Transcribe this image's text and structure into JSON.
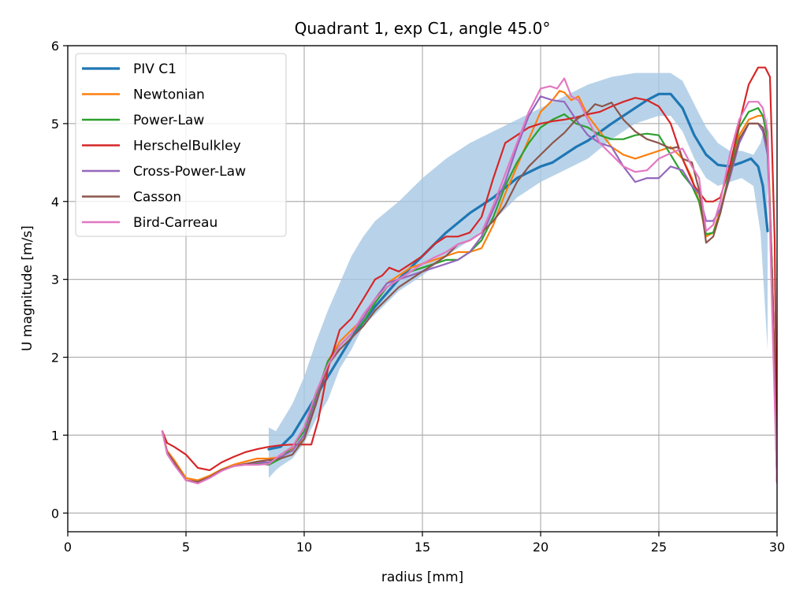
{
  "chart_data": {
    "type": "line",
    "title": "Quadrant 1, exp C1, angle 45.0°",
    "xlabel": "radius [mm]",
    "ylabel": "U magnitude [m/s]",
    "xlim": [
      0,
      30
    ],
    "ylim": [
      -0.24,
      6
    ],
    "xticks": [
      0,
      5,
      10,
      15,
      20,
      25,
      30
    ],
    "yticks": [
      0,
      1,
      2,
      3,
      4,
      5,
      6
    ],
    "xtick_labels": [
      "0",
      "5",
      "10",
      "15",
      "20",
      "25",
      "30"
    ],
    "ytick_labels": [
      "0",
      "1",
      "2",
      "3",
      "4",
      "5",
      "6"
    ],
    "grid": true,
    "legend_position": "top-left",
    "band": {
      "name": "PIV C1 spread",
      "color": "#a6c8e3",
      "x": [
        8.5,
        8.8,
        9.0,
        9.5,
        10.0,
        10.5,
        11.0,
        11.5,
        12.0,
        12.5,
        13.0,
        14.0,
        15.0,
        16.0,
        17.0,
        18.0,
        19.0,
        20.0,
        21.0,
        22.0,
        23.0,
        24.0,
        25.0,
        25.5,
        26.0,
        26.5,
        27.0,
        27.5,
        28.0,
        28.5,
        29.0,
        29.3,
        29.6
      ],
      "lower": [
        0.45,
        0.55,
        0.6,
        0.7,
        0.9,
        1.2,
        1.45,
        1.85,
        2.1,
        2.4,
        2.55,
        2.85,
        3.05,
        3.3,
        3.5,
        3.75,
        4.05,
        4.25,
        4.4,
        4.55,
        4.8,
        5.0,
        5.1,
        5.1,
        4.9,
        4.55,
        4.3,
        4.2,
        4.25,
        4.3,
        4.2,
        3.6,
        2.1
      ],
      "upper": [
        1.1,
        1.05,
        1.15,
        1.4,
        1.75,
        2.2,
        2.6,
        2.95,
        3.3,
        3.55,
        3.75,
        4.0,
        4.3,
        4.55,
        4.75,
        4.9,
        5.05,
        5.2,
        5.35,
        5.5,
        5.6,
        5.65,
        5.65,
        5.65,
        5.55,
        5.25,
        4.95,
        4.75,
        4.65,
        4.65,
        4.6,
        4.75,
        5.1
      ]
    },
    "series": [
      {
        "name": "PIV C1",
        "color": "#1f77b4",
        "width": 3.2,
        "x": [
          8.5,
          9.0,
          9.5,
          10.0,
          10.5,
          11.0,
          12.0,
          13.0,
          14.0,
          15.0,
          16.0,
          17.0,
          18.0,
          19.0,
          20.0,
          20.5,
          21.0,
          21.5,
          22.0,
          23.0,
          24.0,
          24.5,
          25.0,
          25.5,
          26.0,
          26.5,
          27.0,
          27.5,
          28.0,
          28.5,
          28.9,
          29.2,
          29.4,
          29.6
        ],
        "y": [
          0.82,
          0.85,
          1.0,
          1.25,
          1.5,
          1.75,
          2.25,
          2.65,
          3.0,
          3.3,
          3.6,
          3.85,
          4.05,
          4.3,
          4.45,
          4.5,
          4.6,
          4.7,
          4.78,
          5.0,
          5.2,
          5.3,
          5.38,
          5.38,
          5.2,
          4.85,
          4.6,
          4.47,
          4.45,
          4.5,
          4.55,
          4.45,
          4.2,
          3.62
        ]
      },
      {
        "name": "Newtonian",
        "color": "#ff7f0e",
        "width": 2.2,
        "x": [
          4.0,
          4.2,
          4.5,
          5.0,
          5.5,
          6.0,
          6.5,
          7.0,
          7.5,
          8.0,
          8.5,
          9.0,
          9.5,
          10.0,
          10.5,
          11.0,
          11.5,
          12.0,
          12.5,
          13.0,
          13.5,
          14.0,
          14.5,
          15.0,
          15.5,
          16.0,
          16.5,
          17.0,
          17.5,
          18.0,
          18.5,
          19.0,
          19.5,
          20.0,
          20.5,
          20.8,
          21.0,
          21.3,
          21.6,
          22.0,
          22.5,
          23.0,
          23.5,
          24.0,
          24.5,
          25.0,
          25.5,
          26.0,
          26.4,
          26.7,
          27.0,
          27.3,
          27.6,
          28.0,
          28.4,
          28.8,
          29.2,
          29.4,
          29.6,
          29.8,
          30.0
        ],
        "y": [
          1.05,
          0.8,
          0.68,
          0.45,
          0.42,
          0.48,
          0.56,
          0.62,
          0.66,
          0.7,
          0.7,
          0.72,
          0.82,
          0.95,
          1.4,
          1.95,
          2.2,
          2.35,
          2.5,
          2.75,
          2.95,
          3.05,
          3.15,
          3.2,
          3.25,
          3.3,
          3.35,
          3.35,
          3.4,
          3.7,
          4.1,
          4.45,
          4.8,
          5.15,
          5.3,
          5.42,
          5.4,
          5.3,
          5.35,
          5.1,
          4.9,
          4.7,
          4.6,
          4.55,
          4.6,
          4.65,
          4.7,
          4.55,
          4.3,
          4.0,
          3.55,
          3.6,
          3.9,
          4.35,
          4.85,
          5.05,
          5.1,
          5.1,
          4.9,
          3.0,
          0.4
        ]
      },
      {
        "name": "Power-Law",
        "color": "#2ca02c",
        "width": 2.2,
        "x": [
          4.0,
          4.2,
          4.5,
          5.0,
          5.5,
          6.0,
          6.5,
          7.0,
          7.5,
          8.0,
          8.5,
          9.0,
          9.5,
          10.0,
          10.5,
          11.0,
          11.5,
          12.0,
          12.5,
          13.0,
          13.5,
          14.0,
          14.5,
          15.0,
          15.5,
          16.0,
          16.5,
          17.0,
          17.5,
          18.0,
          18.5,
          19.0,
          19.5,
          20.0,
          20.5,
          21.0,
          21.5,
          22.0,
          22.5,
          23.0,
          23.5,
          24.0,
          24.5,
          25.0,
          25.5,
          26.0,
          26.4,
          26.7,
          27.0,
          27.3,
          27.6,
          28.0,
          28.4,
          28.8,
          29.2,
          29.4,
          29.6,
          29.8,
          30.0
        ],
        "y": [
          1.05,
          0.78,
          0.65,
          0.42,
          0.4,
          0.46,
          0.55,
          0.6,
          0.63,
          0.64,
          0.62,
          0.7,
          0.85,
          1.05,
          1.5,
          1.95,
          2.15,
          2.3,
          2.45,
          2.7,
          2.9,
          3.0,
          3.1,
          3.15,
          3.2,
          3.25,
          3.25,
          3.35,
          3.5,
          3.8,
          4.2,
          4.5,
          4.75,
          4.95,
          5.05,
          5.12,
          5.0,
          4.95,
          4.85,
          4.8,
          4.8,
          4.85,
          4.87,
          4.85,
          4.6,
          4.35,
          4.2,
          4.0,
          3.58,
          3.6,
          3.85,
          4.4,
          4.95,
          5.15,
          5.2,
          5.1,
          4.8,
          3.0,
          0.4
        ]
      },
      {
        "name": "HerschelBulkley",
        "color": "#d62728",
        "width": 2.2,
        "x": [
          4.0,
          4.2,
          4.5,
          5.0,
          5.5,
          6.0,
          6.5,
          7.0,
          7.5,
          8.0,
          8.5,
          9.0,
          9.5,
          10.0,
          10.3,
          10.6,
          11.0,
          11.5,
          12.0,
          12.5,
          13.0,
          13.3,
          13.6,
          14.0,
          14.5,
          15.0,
          15.5,
          16.0,
          16.5,
          17.0,
          17.5,
          18.0,
          18.5,
          19.0,
          19.5,
          20.0,
          20.5,
          21.0,
          21.5,
          22.0,
          22.5,
          23.0,
          23.5,
          24.0,
          24.5,
          25.0,
          25.5,
          26.0,
          26.5,
          27.0,
          27.3,
          27.6,
          28.0,
          28.4,
          28.8,
          29.2,
          29.5,
          29.7,
          29.9,
          30.0
        ],
        "y": [
          1.05,
          0.9,
          0.85,
          0.75,
          0.58,
          0.55,
          0.65,
          0.72,
          0.78,
          0.82,
          0.85,
          0.87,
          0.88,
          0.88,
          0.88,
          1.2,
          1.85,
          2.35,
          2.5,
          2.75,
          3.0,
          3.05,
          3.15,
          3.1,
          3.2,
          3.3,
          3.45,
          3.55,
          3.55,
          3.6,
          3.8,
          4.3,
          4.75,
          4.85,
          4.95,
          5.0,
          5.03,
          5.05,
          5.08,
          5.12,
          5.15,
          5.22,
          5.28,
          5.33,
          5.3,
          5.22,
          5.0,
          4.55,
          4.2,
          4.0,
          4.0,
          4.05,
          4.45,
          5.0,
          5.5,
          5.72,
          5.72,
          5.6,
          3.5,
          0.4
        ]
      },
      {
        "name": "Cross-Power-Law",
        "color": "#9467bd",
        "width": 2.2,
        "x": [
          4.0,
          4.2,
          4.5,
          5.0,
          5.5,
          6.0,
          6.5,
          7.0,
          7.5,
          8.0,
          8.5,
          9.0,
          9.5,
          10.0,
          10.5,
          11.0,
          11.5,
          12.0,
          12.5,
          13.0,
          13.5,
          14.0,
          14.5,
          15.0,
          15.5,
          16.0,
          16.5,
          17.0,
          17.5,
          18.0,
          18.5,
          19.0,
          19.5,
          20.0,
          20.5,
          21.0,
          21.5,
          22.0,
          22.5,
          23.0,
          23.5,
          24.0,
          24.5,
          25.0,
          25.5,
          26.0,
          26.4,
          26.7,
          27.0,
          27.3,
          27.6,
          28.0,
          28.4,
          28.8,
          29.2,
          29.4,
          29.6,
          29.8,
          30.0
        ],
        "y": [
          1.05,
          0.78,
          0.65,
          0.42,
          0.4,
          0.46,
          0.55,
          0.6,
          0.63,
          0.65,
          0.65,
          0.72,
          0.8,
          1.0,
          1.45,
          1.9,
          2.15,
          2.3,
          2.5,
          2.75,
          2.95,
          3.0,
          3.05,
          3.1,
          3.15,
          3.2,
          3.25,
          3.35,
          3.55,
          3.9,
          4.25,
          4.7,
          5.1,
          5.35,
          5.3,
          5.28,
          5.05,
          4.85,
          4.75,
          4.7,
          4.45,
          4.25,
          4.3,
          4.3,
          4.45,
          4.4,
          4.2,
          4.1,
          3.75,
          3.75,
          3.9,
          4.3,
          4.75,
          5.0,
          5.0,
          4.9,
          4.6,
          3.0,
          0.4
        ]
      },
      {
        "name": "Casson",
        "color": "#8c564b",
        "width": 2.2,
        "x": [
          4.0,
          4.2,
          4.5,
          5.0,
          5.5,
          6.0,
          6.5,
          7.0,
          7.5,
          8.0,
          8.5,
          9.0,
          9.5,
          10.0,
          10.5,
          11.0,
          11.5,
          12.0,
          12.5,
          13.0,
          13.5,
          14.0,
          14.5,
          15.0,
          15.5,
          16.0,
          16.5,
          17.0,
          17.5,
          18.0,
          18.5,
          19.0,
          19.5,
          20.0,
          20.5,
          21.0,
          21.5,
          22.0,
          22.3,
          22.6,
          23.0,
          23.5,
          24.0,
          24.5,
          25.0,
          25.5,
          25.8,
          26.0,
          26.4,
          26.7,
          27.0,
          27.3,
          27.6,
          28.0,
          28.4,
          28.8,
          29.2,
          29.4,
          29.6,
          29.8,
          30.0
        ],
        "y": [
          1.05,
          0.78,
          0.65,
          0.42,
          0.4,
          0.46,
          0.55,
          0.6,
          0.63,
          0.66,
          0.68,
          0.7,
          0.75,
          0.95,
          1.4,
          1.9,
          2.1,
          2.25,
          2.4,
          2.6,
          2.75,
          2.9,
          3.0,
          3.1,
          3.2,
          3.3,
          3.45,
          3.5,
          3.6,
          3.75,
          3.95,
          4.25,
          4.45,
          4.6,
          4.75,
          4.88,
          5.05,
          5.15,
          5.25,
          5.22,
          5.27,
          5.05,
          4.9,
          4.8,
          4.75,
          4.68,
          4.7,
          4.55,
          4.5,
          4.15,
          3.47,
          3.55,
          3.85,
          4.35,
          4.8,
          5.0,
          5.0,
          4.95,
          4.7,
          3.0,
          0.4
        ]
      },
      {
        "name": "Bird-Carreau",
        "color": "#e377c2",
        "width": 2.2,
        "x": [
          4.0,
          4.2,
          4.5,
          5.0,
          5.5,
          6.0,
          6.5,
          7.0,
          7.5,
          8.0,
          8.5,
          9.0,
          9.5,
          10.0,
          10.5,
          11.0,
          11.5,
          12.0,
          12.5,
          13.0,
          13.5,
          14.0,
          14.5,
          15.0,
          15.5,
          16.0,
          16.5,
          17.0,
          17.5,
          18.0,
          18.5,
          19.0,
          19.5,
          20.0,
          20.4,
          20.7,
          21.0,
          21.3,
          21.6,
          22.0,
          22.5,
          23.0,
          23.5,
          24.0,
          24.5,
          25.0,
          25.5,
          26.0,
          26.4,
          26.7,
          27.0,
          27.3,
          27.6,
          28.0,
          28.4,
          28.8,
          29.2,
          29.4,
          29.6,
          29.8,
          30.0
        ],
        "y": [
          1.05,
          0.76,
          0.62,
          0.42,
          0.38,
          0.45,
          0.54,
          0.6,
          0.62,
          0.62,
          0.63,
          0.75,
          0.85,
          1.1,
          1.55,
          1.9,
          2.15,
          2.3,
          2.55,
          2.75,
          2.9,
          3.0,
          3.1,
          3.2,
          3.28,
          3.35,
          3.45,
          3.5,
          3.6,
          3.95,
          4.35,
          4.75,
          5.15,
          5.45,
          5.48,
          5.45,
          5.58,
          5.35,
          5.3,
          5.05,
          4.75,
          4.6,
          4.45,
          4.38,
          4.4,
          4.55,
          4.62,
          4.68,
          4.45,
          4.3,
          3.62,
          3.7,
          4.0,
          4.6,
          5.05,
          5.28,
          5.28,
          5.2,
          4.9,
          2.5,
          0.38
        ]
      }
    ]
  }
}
